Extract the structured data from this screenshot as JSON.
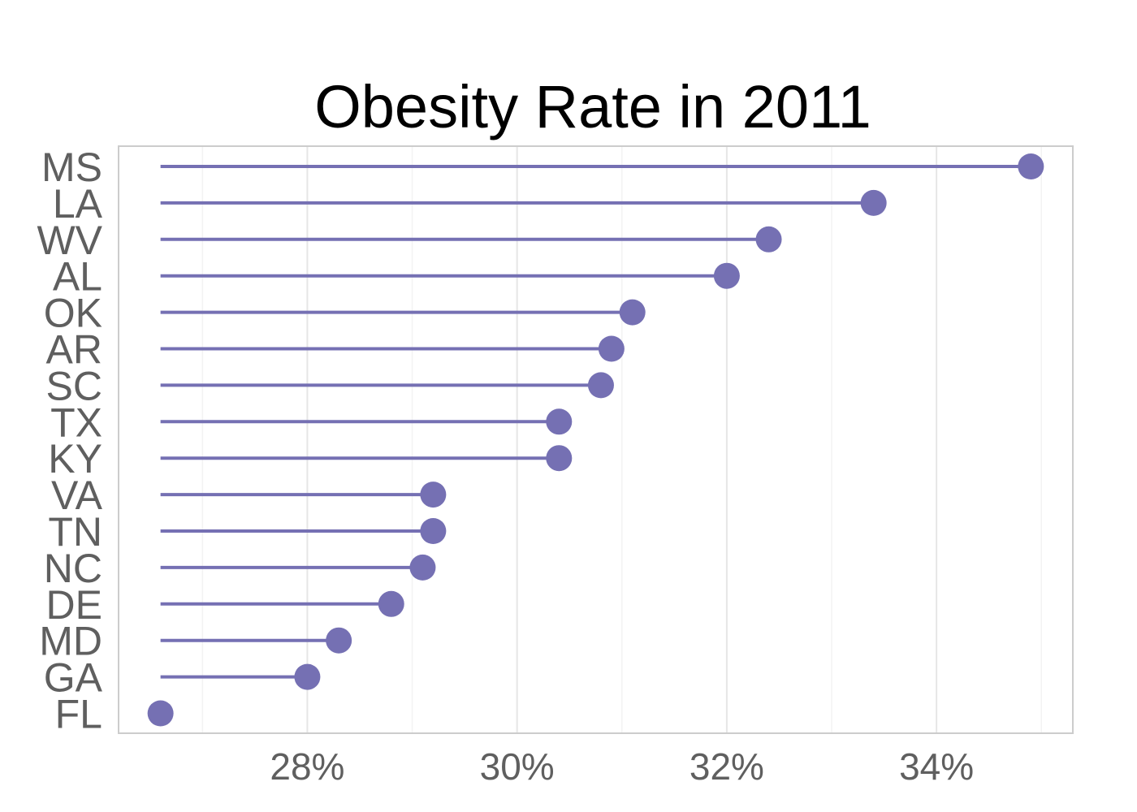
{
  "chart_data": {
    "type": "lollipop",
    "title": "Obesity Rate in 2011",
    "xlabel": "",
    "ylabel": "",
    "categories": [
      "MS",
      "LA",
      "WV",
      "AL",
      "OK",
      "AR",
      "SC",
      "TX",
      "KY",
      "VA",
      "TN",
      "NC",
      "DE",
      "MD",
      "GA",
      "FL"
    ],
    "values": [
      34.9,
      33.4,
      32.4,
      32.0,
      31.1,
      30.9,
      30.8,
      30.4,
      30.4,
      29.2,
      29.2,
      29.1,
      28.8,
      28.3,
      28.0,
      26.6
    ],
    "baseline": 26.6,
    "xlim": [
      26.2,
      35.3
    ],
    "xticks": [
      28,
      30,
      32,
      34
    ],
    "xtick_labels": [
      "28%",
      "30%",
      "32%",
      "34%"
    ],
    "minor_xticks": [
      27,
      29,
      31,
      33,
      35
    ],
    "grid": true,
    "legend": "none",
    "colors": {
      "mark": "#7570b3",
      "panel_border": "#cccccc",
      "major_grid": "#e6e6e6",
      "minor_grid": "#f3f3f3",
      "tick_text": "#5f5f5f",
      "title_text": "#000000"
    }
  }
}
